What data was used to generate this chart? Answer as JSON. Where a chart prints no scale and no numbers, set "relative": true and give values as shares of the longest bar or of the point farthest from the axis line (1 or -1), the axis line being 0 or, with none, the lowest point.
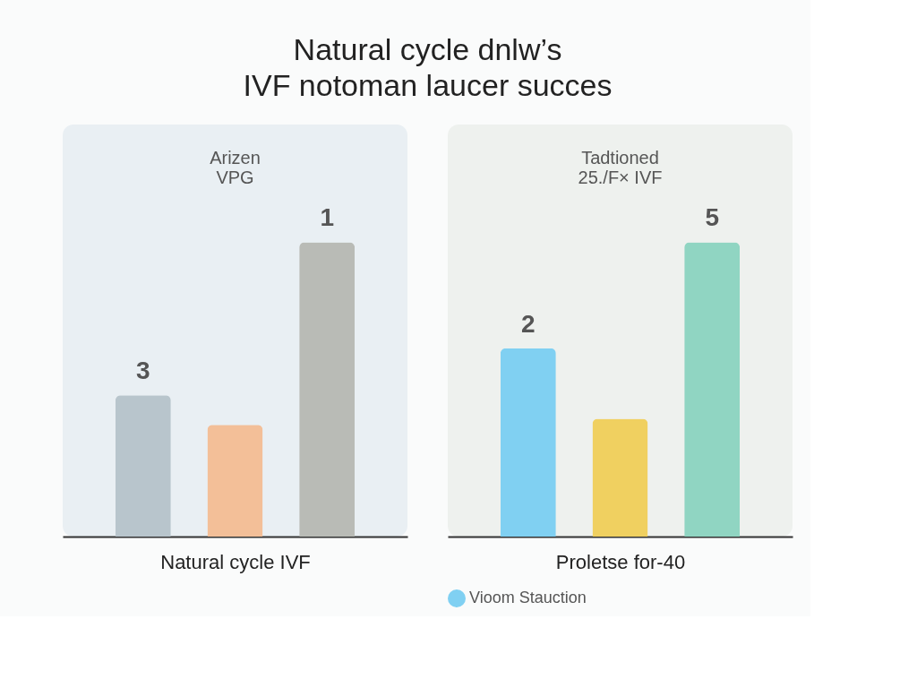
{
  "chart_data": [
    {
      "type": "bar",
      "title": "Natural cycle dnlw’s\nIVF notoman laucer succes",
      "subtitle": "Arizen\nVPG",
      "xlabel": "Natural cycle IVF",
      "relative": true,
      "categories": [
        null,
        null,
        null
      ],
      "series": [
        {
          "colors": [
            "#b8c5cc",
            "#f3bf98",
            "#b9bbb6"
          ],
          "values": [
            0.48,
            0.38,
            1
          ]
        }
      ],
      "annotations": [
        "3",
        "1"
      ]
    },
    {
      "type": "bar",
      "subtitle": "Tadtioned\n25./F× IVF",
      "xlabel": "Proletse for-40",
      "relative": true,
      "categories": [
        null,
        null,
        null
      ],
      "legend": "bottom left",
      "series": [
        {
          "name": "Vioom Stauction",
          "color": "#80d0f2",
          "colors": [
            "#80d0f2",
            "#f0d060",
            "#90d5c2"
          ],
          "values": [
            0.64,
            0.4,
            1
          ]
        }
      ],
      "annotations": [
        "2",
        "5"
      ]
    }
  ]
}
